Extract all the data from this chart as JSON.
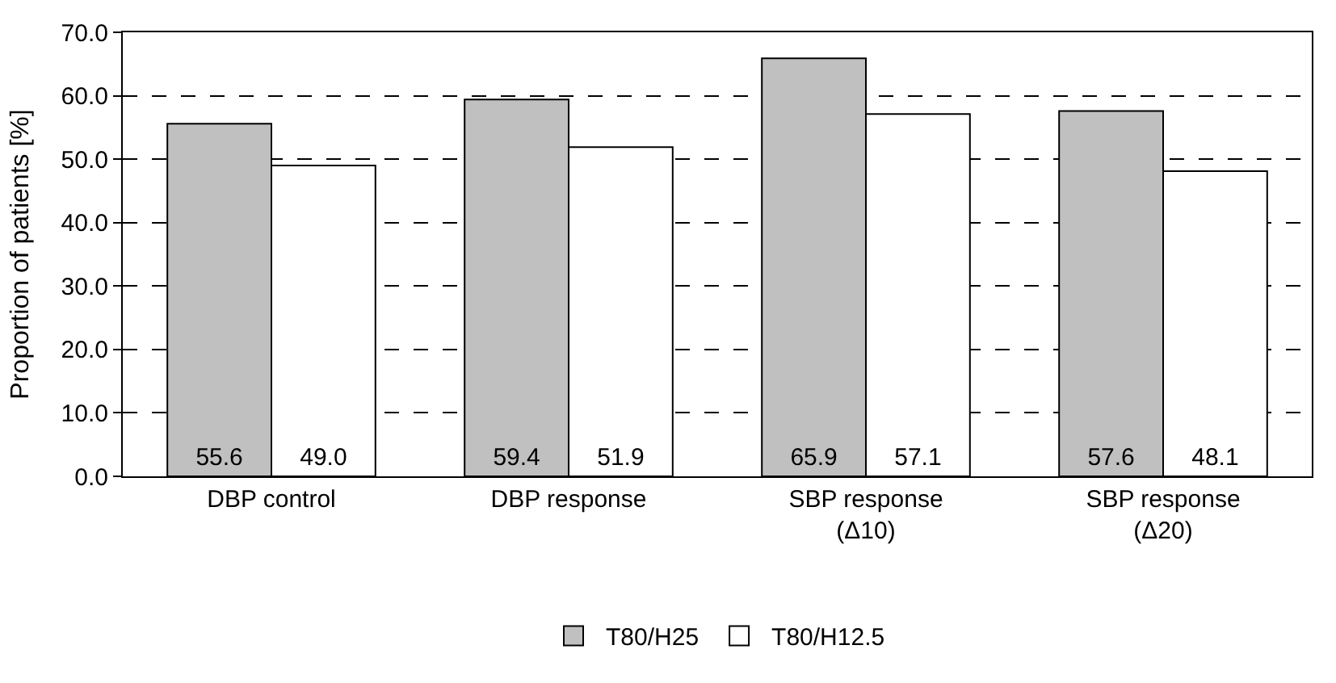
{
  "chart_data": {
    "type": "bar",
    "ylabel": "Proportion of patients [%]",
    "categories": [
      "DBP control",
      "DBP response",
      "SBP response\n(Δ10)",
      "SBP response\n(Δ20)"
    ],
    "series": [
      {
        "name": "T80/H25",
        "color": "#c0c0c0",
        "values": [
          55.6,
          59.4,
          65.9,
          57.6
        ],
        "value_labels": [
          "55.6",
          "59.4",
          "65.9",
          "57.6"
        ]
      },
      {
        "name": "T80/H12.5",
        "color": "#ffffff",
        "values": [
          49.0,
          51.9,
          57.1,
          48.1
        ],
        "value_labels": [
          "49.0",
          "51.9",
          "57.1",
          "48.1"
        ]
      }
    ],
    "ylim": [
      0,
      70
    ],
    "yticks": [
      {
        "value": 0,
        "label": "0.0"
      },
      {
        "value": 10,
        "label": "10.0"
      },
      {
        "value": 20,
        "label": "20.0"
      },
      {
        "value": 30,
        "label": "30.0"
      },
      {
        "value": 40,
        "label": "40.0"
      },
      {
        "value": 50,
        "label": "50.0"
      },
      {
        "value": 60,
        "label": "60.0"
      },
      {
        "value": 70,
        "label": "70.0"
      }
    ],
    "grid": "y",
    "legend": "bottom"
  }
}
